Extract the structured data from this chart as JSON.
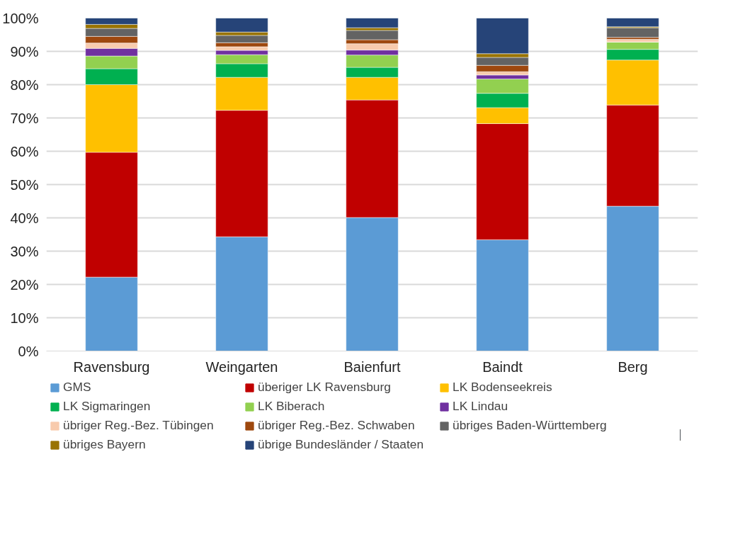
{
  "chart_data": {
    "type": "bar",
    "stacked": true,
    "categories": [
      "Ravensburg",
      "Weingarten",
      "Baienfurt",
      "Baindt",
      "Berg"
    ],
    "series": [
      {
        "name": "GMS",
        "color": "#5b9bd5",
        "values": [
          22.2,
          34.3,
          40.1,
          33.4,
          43.5
        ]
      },
      {
        "name": "überiger LK Ravensburg",
        "color": "#c00000",
        "values": [
          37.5,
          38.0,
          35.3,
          34.9,
          30.4
        ]
      },
      {
        "name": "LK Bodenseekreis",
        "color": "#ffc000",
        "values": [
          20.3,
          9.9,
          6.8,
          4.8,
          13.5
        ]
      },
      {
        "name": "LK Sigmaringen",
        "color": "#00b050",
        "values": [
          4.8,
          4.1,
          3.0,
          4.3,
          3.2
        ]
      },
      {
        "name": "LK Biberach",
        "color": "#92d050",
        "values": [
          3.8,
          2.7,
          3.7,
          4.3,
          2.2
        ]
      },
      {
        "name": "LK Lindau",
        "color": "#7030a0",
        "values": [
          2.3,
          1.3,
          1.5,
          1.2,
          0
        ]
      },
      {
        "name": "übriger Reg.-Bez. Tübingen",
        "color": "#f8cbad",
        "values": [
          1.6,
          1.1,
          1.9,
          1.0,
          0.8
        ]
      },
      {
        "name": "übriger Reg.-Bez. Schwaben",
        "color": "#9e480e",
        "values": [
          2.0,
          1.2,
          1.2,
          1.9,
          0.6
        ]
      },
      {
        "name": "übriges Baden-Württemberg",
        "color": "#636363",
        "values": [
          2.4,
          2.2,
          2.8,
          2.4,
          2.9
        ]
      },
      {
        "name": "übriges Bayern",
        "color": "#997300",
        "values": [
          1.2,
          1.0,
          0.8,
          1.1,
          0.3
        ]
      },
      {
        "name": "übrige Bundesländer / Staaten",
        "color": "#264478",
        "values": [
          1.9,
          4.2,
          2.9,
          10.7,
          2.6
        ]
      }
    ],
    "ylim": [
      0,
      100
    ],
    "yticks": [
      {
        "value": 0,
        "label": "0%"
      },
      {
        "value": 10,
        "label": "10%"
      },
      {
        "value": 20,
        "label": "20%"
      },
      {
        "value": 30,
        "label": "30%"
      },
      {
        "value": 40,
        "label": "40%"
      },
      {
        "value": 50,
        "label": "50%"
      },
      {
        "value": 60,
        "label": "60%"
      },
      {
        "value": 70,
        "label": "70%"
      },
      {
        "value": 80,
        "label": "80%"
      },
      {
        "value": 90,
        "label": "90%"
      },
      {
        "value": 100,
        "label": "100%"
      }
    ],
    "grid": "y",
    "legend": "bottom"
  }
}
